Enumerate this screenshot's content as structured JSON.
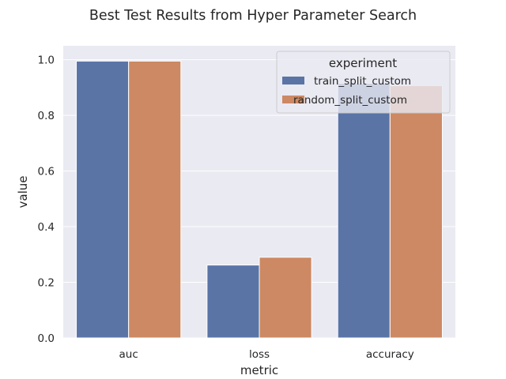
{
  "chart_data": {
    "type": "bar",
    "title": "Best Test Results from Hyper Parameter Search",
    "xlabel": "metric",
    "ylabel": "value",
    "categories": [
      "auc",
      "loss",
      "accuracy"
    ],
    "series": [
      {
        "name": "train_split_custom",
        "values": [
          0.995,
          0.262,
          0.915
        ]
      },
      {
        "name": "random_split_custom",
        "values": [
          0.995,
          0.29,
          0.907
        ]
      }
    ],
    "ylim": [
      0,
      1.05
    ],
    "yticks": [
      0.0,
      0.2,
      0.4,
      0.6,
      0.8,
      1.0
    ],
    "ytick_labels": [
      "0.0",
      "0.2",
      "0.4",
      "0.6",
      "0.8",
      "1.0"
    ],
    "grid": true,
    "legend": {
      "title": "experiment",
      "placement": "top-right"
    },
    "colors": {
      "background": "#eaeaf2",
      "grid": "#ffffff",
      "series": [
        "#5a74a6",
        "#cc8963"
      ]
    }
  }
}
